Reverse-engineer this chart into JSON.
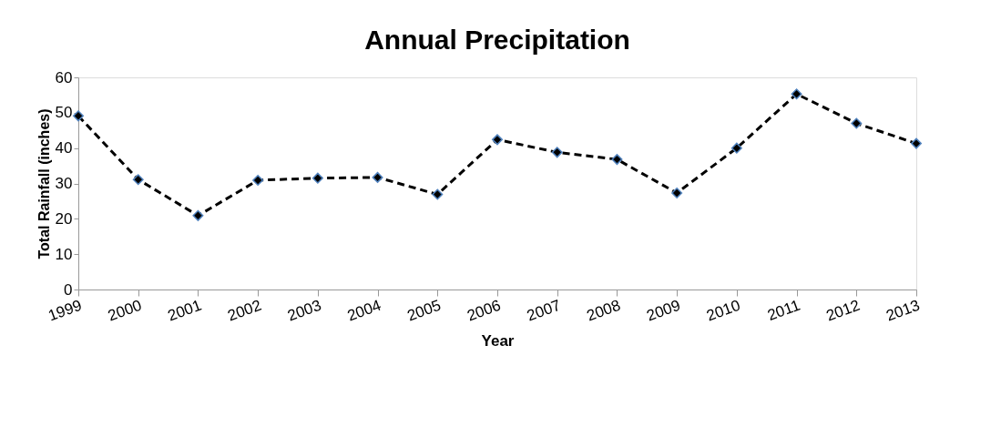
{
  "chart_data": {
    "type": "line",
    "title": "Annual Precipitation",
    "xlabel": "Year",
    "ylabel": "Total Rainfall (inches)",
    "categories": [
      "1999",
      "2000",
      "2001",
      "2002",
      "2003",
      "2004",
      "2005",
      "2006",
      "2007",
      "2008",
      "2009",
      "2010",
      "2011",
      "2012",
      "2013"
    ],
    "series": [
      {
        "color": "#000000",
        "values": [
          49.1,
          31.1,
          20.9,
          30.9,
          31.5,
          31.7,
          26.9,
          42.4,
          38.8,
          36.8,
          27.3,
          40.0,
          55.3,
          47.0,
          41.3
        ]
      }
    ],
    "ylim": [
      0,
      60
    ],
    "yticks": [
      0,
      10,
      20,
      30,
      40,
      50,
      60
    ],
    "grid": false,
    "marker": "diamond",
    "line_style": "dashed"
  }
}
